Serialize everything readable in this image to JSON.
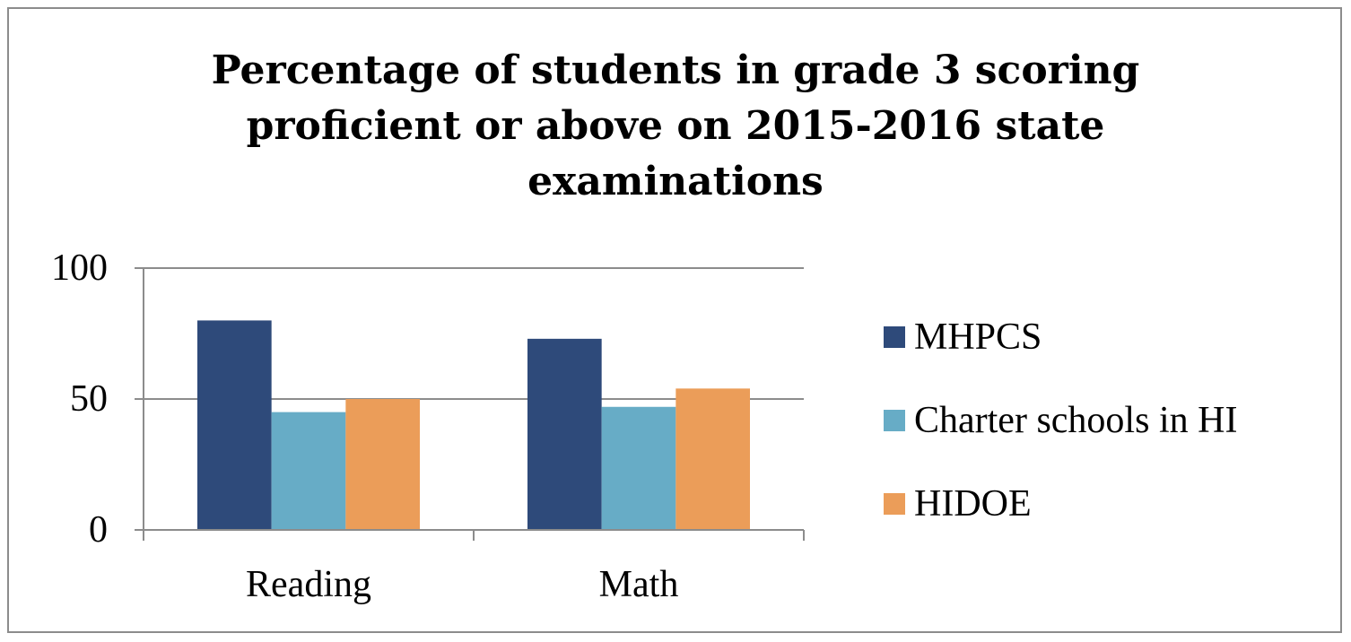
{
  "chart_data": {
    "type": "bar",
    "title_lines": [
      "Percentage of students in grade 3 scoring",
      "proficient or above on 2015-2016 state",
      "examinations"
    ],
    "categories": [
      "Reading",
      "Math"
    ],
    "series": [
      {
        "name": "MHPCS",
        "values": [
          80,
          73
        ],
        "color": "#2e4a7a"
      },
      {
        "name": "Charter schools in HI",
        "values": [
          45,
          47
        ],
        "color": "#67acc6"
      },
      {
        "name": "HIDOE",
        "values": [
          50,
          54
        ],
        "color": "#eb9d59"
      }
    ],
    "ylim": [
      0,
      100
    ],
    "yticks": [
      0,
      50,
      100
    ],
    "grid": true,
    "legend_position": "right"
  }
}
